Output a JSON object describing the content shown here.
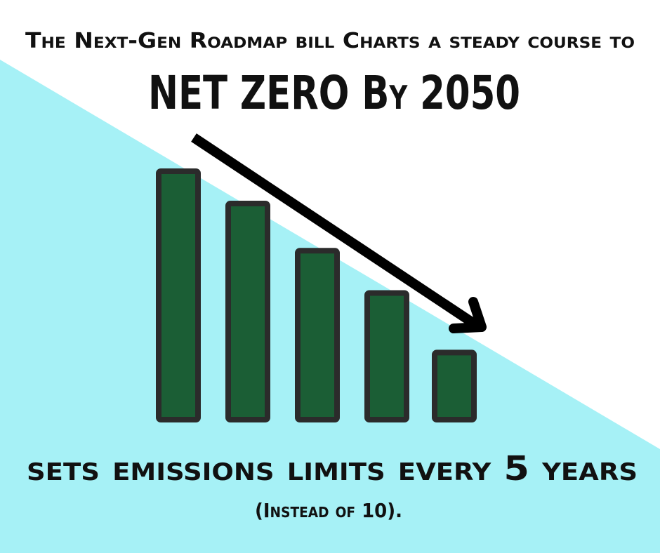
{
  "chart_data": {
    "type": "bar",
    "title": "The Next-Gen Roadmap bill Charts a steady course to",
    "subtitle": "NET ZERO By 2050",
    "annotations": [
      "sets emissions limits every 5 years",
      "(Instead of 10)."
    ],
    "categories": [
      null,
      null,
      null,
      null,
      null
    ],
    "values": [
      100,
      87,
      68,
      51,
      27
    ],
    "ylim": [
      0,
      100
    ],
    "color": "#1b5e35"
  }
}
